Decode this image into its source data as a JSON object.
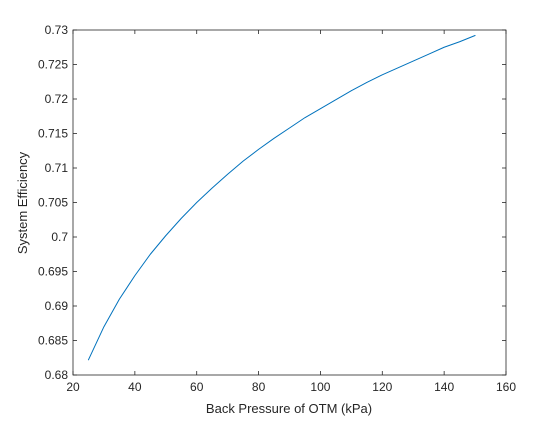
{
  "chart_data": {
    "type": "line",
    "title": "",
    "xlabel": "Back Pressure of OTM (kPa)",
    "ylabel": "System Efficiency",
    "xlim": [
      20,
      160
    ],
    "ylim": [
      0.68,
      0.73
    ],
    "xticks": [
      20,
      40,
      60,
      80,
      100,
      120,
      140,
      160
    ],
    "xtick_labels": [
      "20",
      "40",
      "60",
      "80",
      "100",
      "120",
      "140",
      "160"
    ],
    "yticks": [
      0.68,
      0.685,
      0.69,
      0.695,
      0.7,
      0.705,
      0.71,
      0.715,
      0.72,
      0.725,
      0.73
    ],
    "ytick_labels": [
      "0.68",
      "0.685",
      "0.69",
      "0.695",
      "0.7",
      "0.705",
      "0.71",
      "0.715",
      "0.72",
      "0.725",
      "0.73"
    ],
    "grid": false,
    "legend": "none",
    "series": [
      {
        "color": "#0072bd",
        "x": [
          25,
          30,
          35,
          40,
          45,
          50,
          55,
          60,
          65,
          70,
          75,
          80,
          85,
          90,
          95,
          100,
          105,
          110,
          115,
          120,
          125,
          130,
          135,
          140,
          145,
          150
        ],
        "y": [
          0.6822,
          0.687,
          0.691,
          0.6944,
          0.6975,
          0.7002,
          0.7027,
          0.705,
          0.7071,
          0.7091,
          0.711,
          0.7127,
          0.7143,
          0.7158,
          0.7173,
          0.7186,
          0.7199,
          0.7212,
          0.7224,
          0.7235,
          0.7245,
          0.7255,
          0.7265,
          0.7275,
          0.7283,
          0.7292
        ]
      }
    ]
  }
}
